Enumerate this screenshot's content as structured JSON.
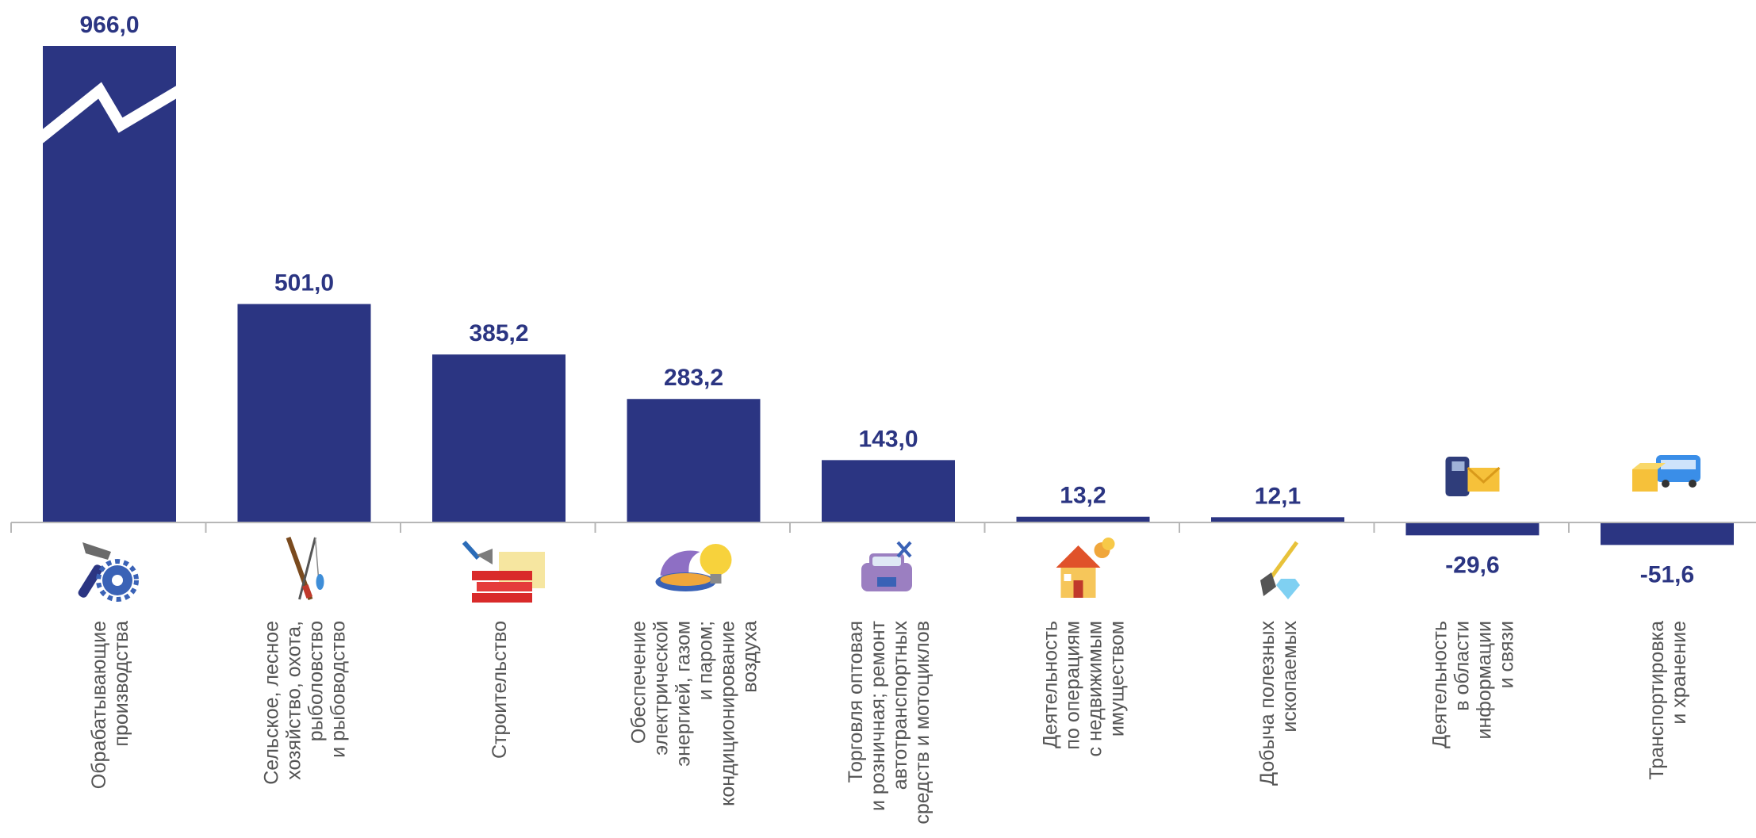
{
  "chart_data": {
    "type": "bar",
    "title": "",
    "xlabel": "",
    "ylabel": "",
    "colors": {
      "bar": "#2b3582",
      "axis": "#b7b7b7",
      "value_label": "#2b3582",
      "category_label": "#555555"
    },
    "axis_break_on_first_bar": true,
    "grid": false,
    "categories": [
      {
        "lines": [
          "Обрабатывающие",
          "производства"
        ],
        "icon": "hammer-gear-icon"
      },
      {
        "lines": [
          "Сельское, лесное",
          "хозяйство, охота,",
          "рыболовство",
          "и рыбоводство"
        ],
        "icon": "fishing-rod-rifle-icon"
      },
      {
        "lines": [
          "Строительство"
        ],
        "icon": "trowel-bricks-icon"
      },
      {
        "lines": [
          "Обеспечение",
          "электрической",
          "энергией, газом",
          "и паром;",
          "кондиционирование",
          "воздуха"
        ],
        "icon": "gas-flame-lightbulb-icon"
      },
      {
        "lines": [
          "Торговля оптовая",
          "и розничная; ремонт",
          "автотранспортных",
          "средств и мотоциклов"
        ],
        "icon": "car-wrench-icon"
      },
      {
        "lines": [
          "Деятельность",
          "по операциям",
          "с недвижимым",
          "имуществом"
        ],
        "icon": "house-coins-icon"
      },
      {
        "lines": [
          "Добыча полезных",
          "ископаемых"
        ],
        "icon": "shovel-diamond-icon"
      },
      {
        "lines": [
          "Деятельность",
          "в области",
          "информации",
          "и связи"
        ],
        "icon": "telephone-envelope-icon"
      },
      {
        "lines": [
          "Транспортировка",
          "и хранение"
        ],
        "icon": "bus-box-icon"
      }
    ],
    "values": [
      966.0,
      501.0,
      385.2,
      283.2,
      143.0,
      13.2,
      12.1,
      -29.6,
      -51.6
    ],
    "value_labels": [
      "966,0",
      "501,0",
      "385,2",
      "283,2",
      "143,0",
      "13,2",
      "12,1",
      "-29,6",
      "-51,6"
    ]
  }
}
